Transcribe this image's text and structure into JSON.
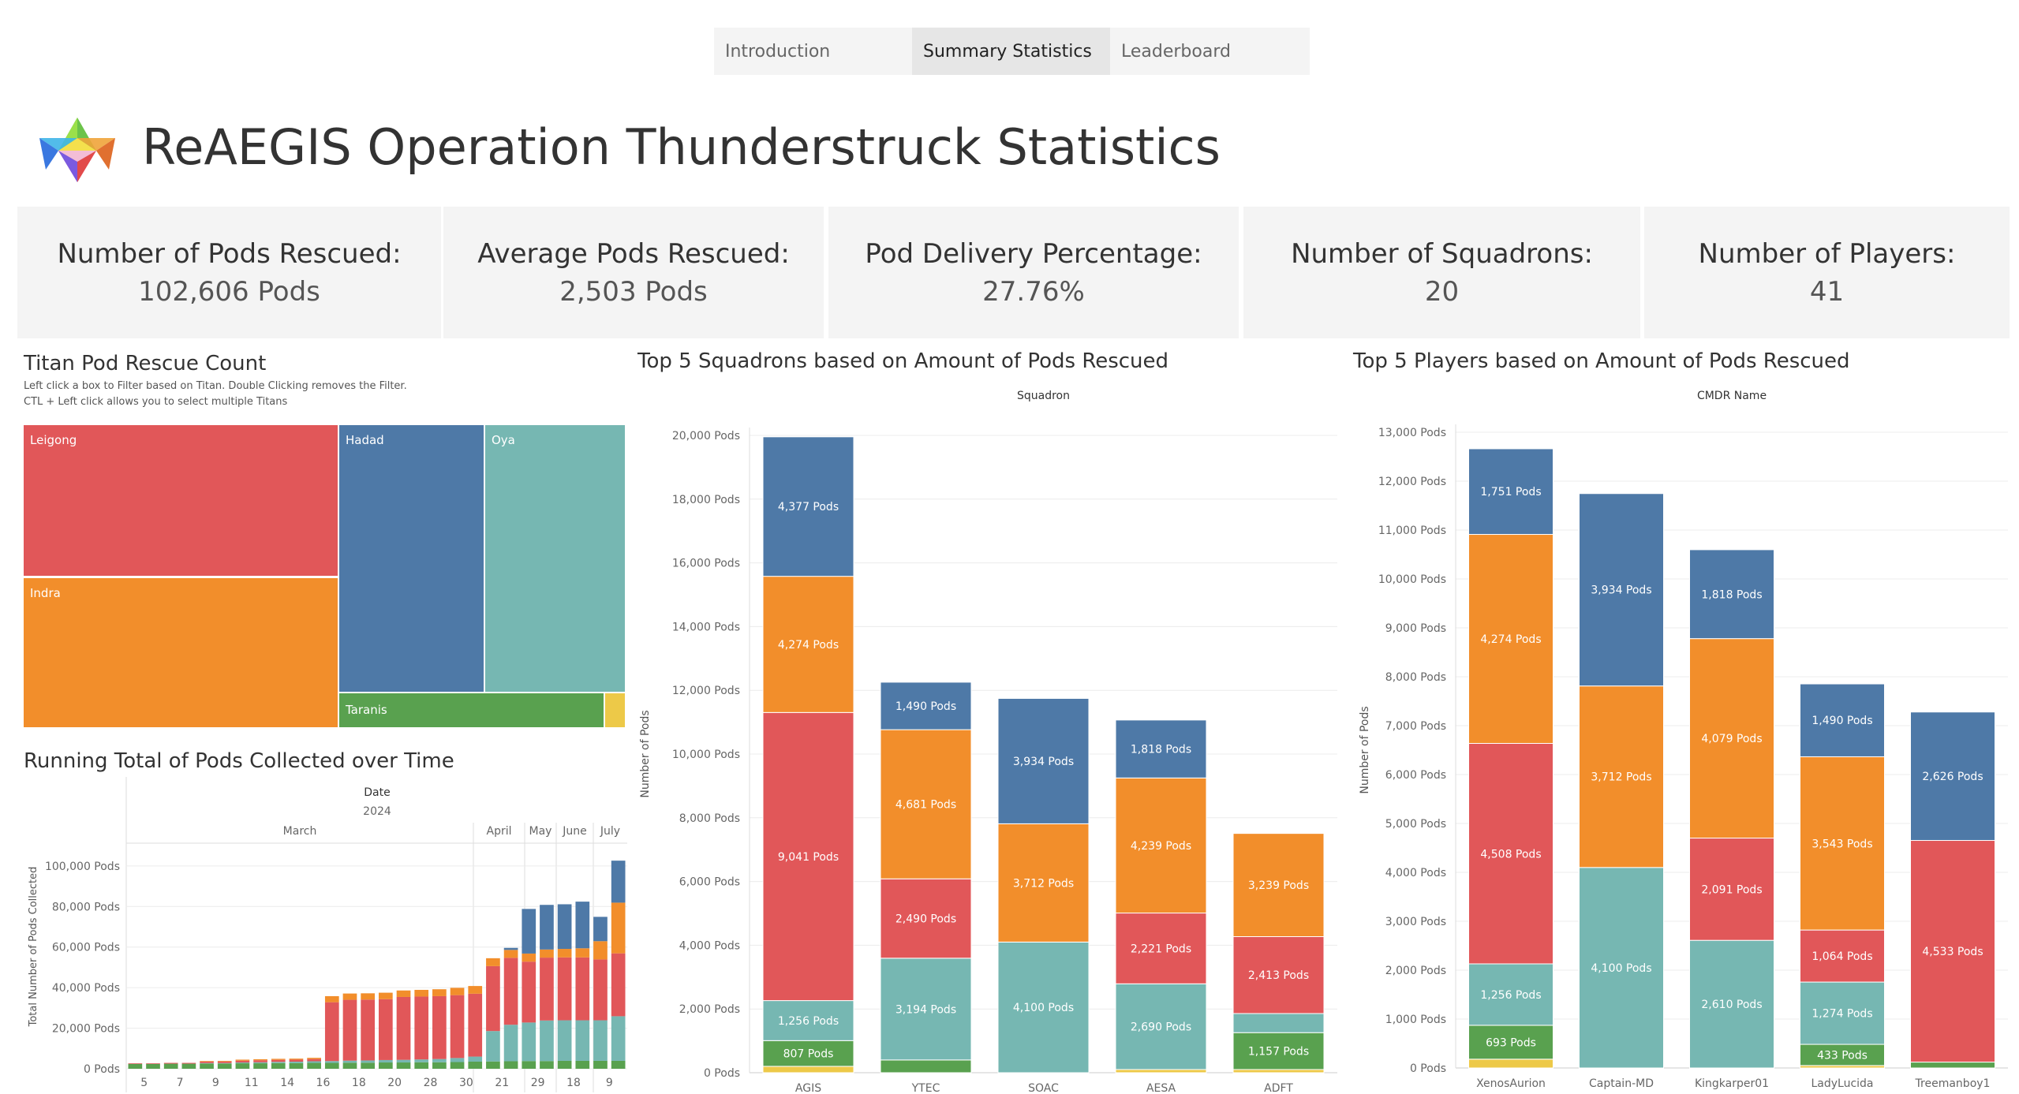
{
  "tabs": [
    {
      "label": "Introduction"
    },
    {
      "label": "Summary Statistics"
    },
    {
      "label": "Leaderboard"
    }
  ],
  "header": {
    "title": "ReAEGIS Operation Thunderstruck Statistics"
  },
  "kpis": [
    {
      "label": "Number of Pods Rescued:",
      "value": "102,606 Pods"
    },
    {
      "label": "Average Pods Rescued:",
      "value": "2,503 Pods"
    },
    {
      "label": "Pod Delivery Percentage:",
      "value": "27.76%"
    },
    {
      "label": "Number of Squadrons:",
      "value": "20"
    },
    {
      "label": "Number of Players:",
      "value": "41"
    }
  ],
  "colors": {
    "blue": "#4e79a7",
    "orange": "#f28e2b",
    "red": "#e15759",
    "teal": "#76b7b2",
    "green": "#59a14f",
    "yellow": "#edc948"
  },
  "treemap": {
    "title": "Titan Pod Rescue Count",
    "note1": "Left click a box to Filter based on Titan. Double Clicking removes the Filter.",
    "note2": "CTL + Left click allows you to select multiple Titans",
    "items": [
      {
        "name": "Leigong"
      },
      {
        "name": "Indra"
      },
      {
        "name": "Hadad"
      },
      {
        "name": "Oya"
      },
      {
        "name": "Taranis"
      }
    ]
  },
  "chart_data": [
    {
      "type": "bar",
      "title": "Running Total of Pods Collected over Time",
      "header_field": "Date",
      "year": "2024",
      "months": [
        "March",
        "April",
        "May",
        "June",
        "July"
      ],
      "ylabel": "Total Number of Pods Collected",
      "ylim": [
        0,
        105000
      ],
      "yticks": [
        0,
        20000,
        40000,
        60000,
        80000,
        100000
      ],
      "ytick_labels": [
        "0 Pods",
        "20,000 Pods",
        "40,000 Pods",
        "60,000 Pods",
        "80,000 Pods",
        "100,000 Pods"
      ],
      "categories": [
        "5",
        "6",
        "7",
        "8",
        "9",
        "10",
        "11",
        "12",
        "14",
        "15",
        "16",
        "17",
        "18",
        "19",
        "20",
        "21",
        "28",
        "29",
        "30",
        "31",
        "21",
        "22",
        "29",
        "30",
        "18",
        "19",
        "9",
        "10"
      ],
      "xtick_labels": [
        "5",
        "7",
        "9",
        "11",
        "14",
        "16",
        "18",
        "20",
        "28",
        "30",
        "21",
        "29",
        "18",
        "9"
      ],
      "series": [
        {
          "name": "Taranis",
          "color": "#59a14f",
          "values": [
            2400,
            2400,
            2500,
            2500,
            2600,
            2600,
            2700,
            2700,
            2800,
            2800,
            2900,
            2900,
            3000,
            3000,
            3100,
            3100,
            3200,
            3200,
            3300,
            3500,
            3600,
            3700,
            3800,
            3800,
            3900,
            3900,
            3900,
            3900
          ]
        },
        {
          "name": "Oya",
          "color": "#76b7b2",
          "values": [
            0,
            0,
            0,
            0,
            200,
            200,
            400,
            500,
            600,
            700,
            800,
            900,
            1000,
            1100,
            1200,
            1300,
            1400,
            1600,
            2000,
            2500,
            15000,
            18000,
            19000,
            20000,
            20000,
            20000,
            20000,
            22000
          ]
        },
        {
          "name": "Leigong",
          "color": "#e15759",
          "values": [
            300,
            300,
            400,
            400,
            700,
            800,
            900,
            1000,
            1000,
            1000,
            1100,
            29000,
            30000,
            30000,
            30000,
            31000,
            31000,
            31000,
            31000,
            31000,
            32000,
            33000,
            30000,
            31000,
            31000,
            31000,
            30000,
            31000
          ]
        },
        {
          "name": "Indra",
          "color": "#f28e2b",
          "values": [
            0,
            0,
            0,
            0,
            300,
            300,
            500,
            500,
            500,
            500,
            600,
            3000,
            3100,
            3100,
            3200,
            3200,
            3300,
            3400,
            3600,
            3800,
            3900,
            3900,
            4000,
            4000,
            4200,
            4500,
            9000,
            25000
          ]
        },
        {
          "name": "Hadad",
          "color": "#4e79a7",
          "values": [
            0,
            0,
            0,
            0,
            0,
            0,
            0,
            0,
            0,
            0,
            0,
            0,
            0,
            0,
            0,
            0,
            0,
            0,
            0,
            0,
            0,
            1000,
            22000,
            22000,
            22000,
            23000,
            12000,
            20706
          ]
        }
      ]
    },
    {
      "type": "bar",
      "title": "Top 5 Squadrons based on Amount of Pods Rescued",
      "header_field": "Squadron",
      "ylabel": "Number of Pods",
      "ylim": [
        0,
        20000
      ],
      "yticks": [
        0,
        2000,
        4000,
        6000,
        8000,
        10000,
        12000,
        14000,
        16000,
        18000,
        20000
      ],
      "ytick_labels": [
        "0 Pods",
        "2,000 Pods",
        "4,000 Pods",
        "6,000 Pods",
        "8,000 Pods",
        "10,000 Pods",
        "12,000 Pods",
        "14,000 Pods",
        "16,000 Pods",
        "18,000 Pods",
        "20,000 Pods"
      ],
      "categories": [
        "AGIS",
        "YTEC",
        "SOAC",
        "AESA",
        "ADFT"
      ],
      "series": [
        {
          "name": "Yellow",
          "color": "#edc948",
          "values": [
            200,
            0,
            0,
            100,
            100
          ],
          "labels": [
            "",
            "",
            "",
            "",
            ""
          ]
        },
        {
          "name": "Taranis",
          "color": "#59a14f",
          "values": [
            807,
            400,
            0,
            0,
            1157
          ],
          "labels": [
            "807 Pods",
            "",
            "",
            "",
            "1,157 Pods"
          ]
        },
        {
          "name": "Oya",
          "color": "#76b7b2",
          "values": [
            1256,
            3194,
            4100,
            2690,
            600
          ],
          "labels": [
            "1,256 Pods",
            "3,194 Pods",
            "4,100 Pods",
            "2,690 Pods",
            ""
          ]
        },
        {
          "name": "Leigong",
          "color": "#e15759",
          "values": [
            9041,
            2490,
            0,
            2221,
            2413
          ],
          "labels": [
            "9,041 Pods",
            "2,490 Pods",
            "",
            "2,221 Pods",
            "2,413 Pods"
          ]
        },
        {
          "name": "Indra",
          "color": "#f28e2b",
          "values": [
            4274,
            4681,
            3712,
            4239,
            3239
          ],
          "labels": [
            "4,274 Pods",
            "4,681 Pods",
            "3,712 Pods",
            "4,239 Pods",
            "3,239 Pods"
          ]
        },
        {
          "name": "Hadad",
          "color": "#4e79a7",
          "values": [
            4377,
            1490,
            3934,
            1818,
            0
          ],
          "labels": [
            "4,377 Pods",
            "1,490 Pods",
            "3,934 Pods",
            "1,818 Pods",
            ""
          ]
        }
      ]
    },
    {
      "type": "bar",
      "title": "Top 5 Players based on Amount of Pods Rescued",
      "header_field": "CMDR Name",
      "ylabel": "Number of Pods",
      "ylim": [
        0,
        13000
      ],
      "yticks": [
        0,
        1000,
        2000,
        3000,
        4000,
        5000,
        6000,
        7000,
        8000,
        9000,
        10000,
        11000,
        12000,
        13000
      ],
      "ytick_labels": [
        "0 Pods",
        "1,000 Pods",
        "2,000 Pods",
        "3,000 Pods",
        "4,000 Pods",
        "5,000 Pods",
        "6,000 Pods",
        "7,000 Pods",
        "8,000 Pods",
        "9,000 Pods",
        "10,000 Pods",
        "11,000 Pods",
        "12,000 Pods",
        "13,000 Pods"
      ],
      "categories": [
        "XenosAurion",
        "Captain-MD",
        "Kingkarper01",
        "LadyLucida",
        "Treemanboy1"
      ],
      "series": [
        {
          "name": "Yellow",
          "color": "#edc948",
          "values": [
            180,
            0,
            0,
            50,
            0
          ],
          "labels": [
            "",
            "",
            "",
            "",
            ""
          ]
        },
        {
          "name": "Taranis",
          "color": "#59a14f",
          "values": [
            693,
            0,
            0,
            433,
            120
          ],
          "labels": [
            "693 Pods",
            "",
            "",
            "433 Pods",
            ""
          ]
        },
        {
          "name": "Oya",
          "color": "#76b7b2",
          "values": [
            1256,
            4100,
            2610,
            1274,
            0
          ],
          "labels": [
            "1,256 Pods",
            "4,100 Pods",
            "2,610 Pods",
            "1,274 Pods",
            ""
          ]
        },
        {
          "name": "Leigong",
          "color": "#e15759",
          "values": [
            4508,
            0,
            2091,
            1064,
            4533
          ],
          "labels": [
            "4,508 Pods",
            "",
            "2,091 Pods",
            "1,064 Pods",
            "4,533 Pods"
          ]
        },
        {
          "name": "Indra",
          "color": "#f28e2b",
          "values": [
            4274,
            3712,
            4079,
            3543,
            0
          ],
          "labels": [
            "4,274 Pods",
            "3,712 Pods",
            "4,079 Pods",
            "3,543 Pods",
            ""
          ]
        },
        {
          "name": "Hadad",
          "color": "#4e79a7",
          "values": [
            1751,
            3934,
            1818,
            1490,
            2626
          ],
          "labels": [
            "1,751 Pods",
            "3,934 Pods",
            "1,818 Pods",
            "1,490 Pods",
            "2,626 Pods"
          ]
        }
      ]
    }
  ]
}
